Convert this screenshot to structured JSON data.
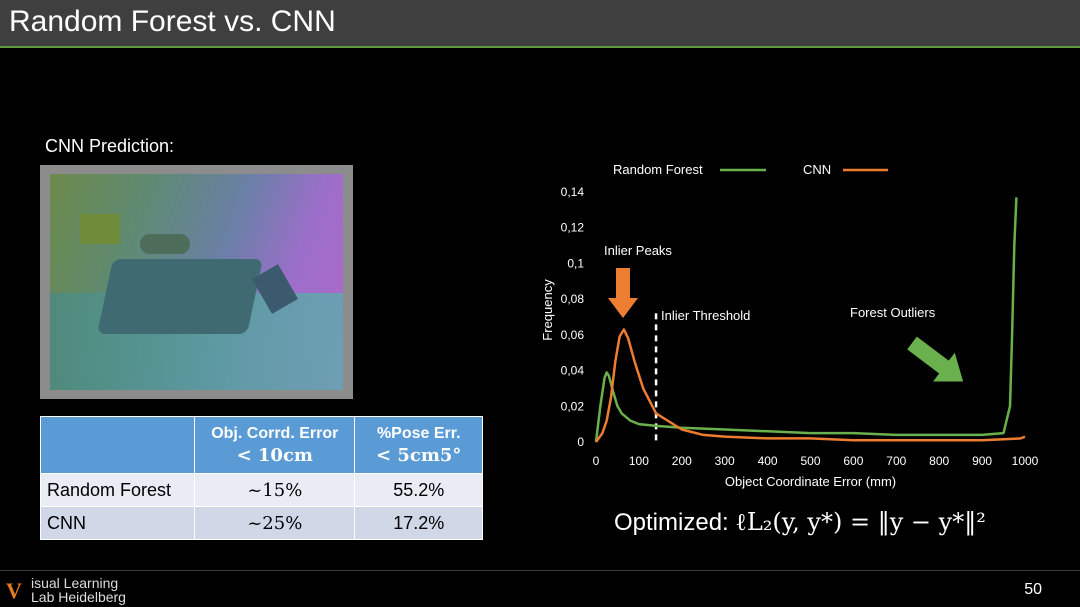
{
  "slide": {
    "title": "Random Forest vs. CNN",
    "cnn_label": "CNN Prediction:",
    "page_number": "50",
    "optimized_prefix": "Optimized: ",
    "optimized_formula": "ℓL₂(y, y*) = ‖y − y*‖²"
  },
  "logo": {
    "mark": "V",
    "line1": "isual Learning",
    "line2": "Lab Heidelberg"
  },
  "table": {
    "headers": {
      "blank": "",
      "col1_line1": "Obj. Corrd. Error",
      "col1_line2": "< 10cm",
      "col2_line1": "%Pose Err.",
      "col2_line2": "< 5cm5°"
    },
    "rows": [
      {
        "name": "Random Forest",
        "obj_err": "~15%",
        "pose_err": "55.2%"
      },
      {
        "name": "CNN",
        "obj_err": "~25%",
        "pose_err": "17.2%"
      }
    ]
  },
  "chart_data": {
    "type": "line",
    "xlabel": "Object Coordinate Error (mm)",
    "ylabel": "Frequency",
    "xlim": [
      0,
      1000
    ],
    "ylim": [
      0,
      0.14
    ],
    "x_ticks": [
      "0",
      "100",
      "200",
      "300",
      "400",
      "500",
      "600",
      "700",
      "800",
      "900",
      "1000"
    ],
    "y_ticks": [
      "0",
      "0,02",
      "0,04",
      "0,06",
      "0,08",
      "0,1",
      "0,12",
      "0,14"
    ],
    "legend_position": "top",
    "grid": false,
    "series": [
      {
        "name": "Random Forest",
        "color": "#6ab04c",
        "x": [
          0,
          10,
          20,
          25,
          30,
          40,
          50,
          60,
          80,
          100,
          140,
          200,
          300,
          400,
          500,
          600,
          700,
          800,
          900,
          950,
          965,
          970,
          975,
          980
        ],
        "y": [
          0,
          0.02,
          0.036,
          0.039,
          0.037,
          0.028,
          0.02,
          0.016,
          0.012,
          0.01,
          0.009,
          0.008,
          0.007,
          0.006,
          0.005,
          0.005,
          0.004,
          0.004,
          0.004,
          0.005,
          0.02,
          0.06,
          0.11,
          0.137
        ]
      },
      {
        "name": "CNN",
        "color": "#ed7d31",
        "x": [
          0,
          15,
          25,
          35,
          45,
          55,
          65,
          75,
          90,
          110,
          140,
          200,
          250,
          300,
          400,
          500,
          600,
          700,
          800,
          900,
          990,
          1000
        ],
        "y": [
          0,
          0.005,
          0.012,
          0.025,
          0.045,
          0.059,
          0.063,
          0.058,
          0.045,
          0.03,
          0.016,
          0.007,
          0.004,
          0.003,
          0.002,
          0.002,
          0.001,
          0.001,
          0.001,
          0.001,
          0.002,
          0.003
        ]
      }
    ],
    "annotations": [
      {
        "text": "Inlier Peaks",
        "x": 65
      },
      {
        "text": "Inlier Threshold",
        "x": 140
      },
      {
        "text": "Forest Outliers",
        "x": 975
      }
    ]
  }
}
